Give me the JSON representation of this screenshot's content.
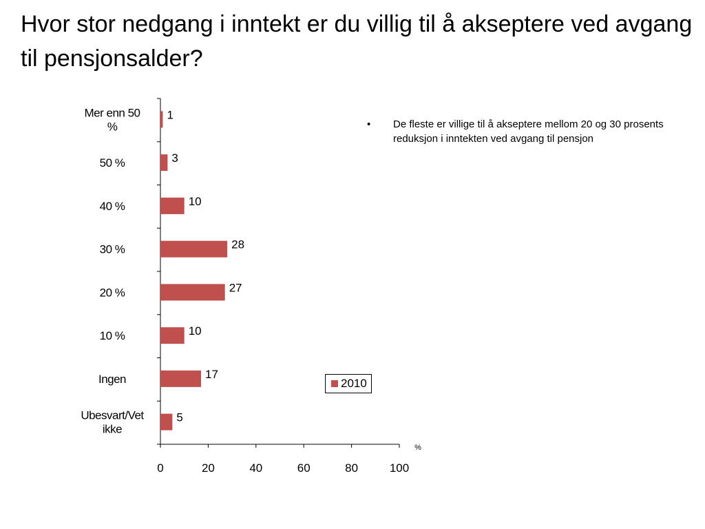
{
  "title": "Hvor stor nedgang i inntekt er du villig til å akseptere ved avgang til pensjonsalder?",
  "bullet": {
    "symbol": "•",
    "text": "De fleste er villige til å akseptere mellom 20 og 30 prosents reduksjon i inntekten ved avgang til pensjon"
  },
  "chart_data": {
    "type": "bar",
    "orientation": "horizontal",
    "categories": [
      [
        "Mer enn 50",
        "%"
      ],
      [
        "50 %"
      ],
      [
        "40 %"
      ],
      [
        "30 %"
      ],
      [
        "20 %"
      ],
      [
        "10 %"
      ],
      [
        "Ingen"
      ],
      [
        "Ubesvart/Vet",
        "ikke"
      ]
    ],
    "series": [
      {
        "name": "2010",
        "color": "#c0504d",
        "values": [
          1,
          3,
          10,
          28,
          27,
          10,
          17,
          5
        ]
      }
    ],
    "x_ticks": [
      "0",
      "20",
      "40",
      "60",
      "80",
      "100"
    ],
    "xlim": [
      0,
      100
    ],
    "x_unit_label": "%",
    "legend_position": "bottom-right",
    "grid": false
  }
}
